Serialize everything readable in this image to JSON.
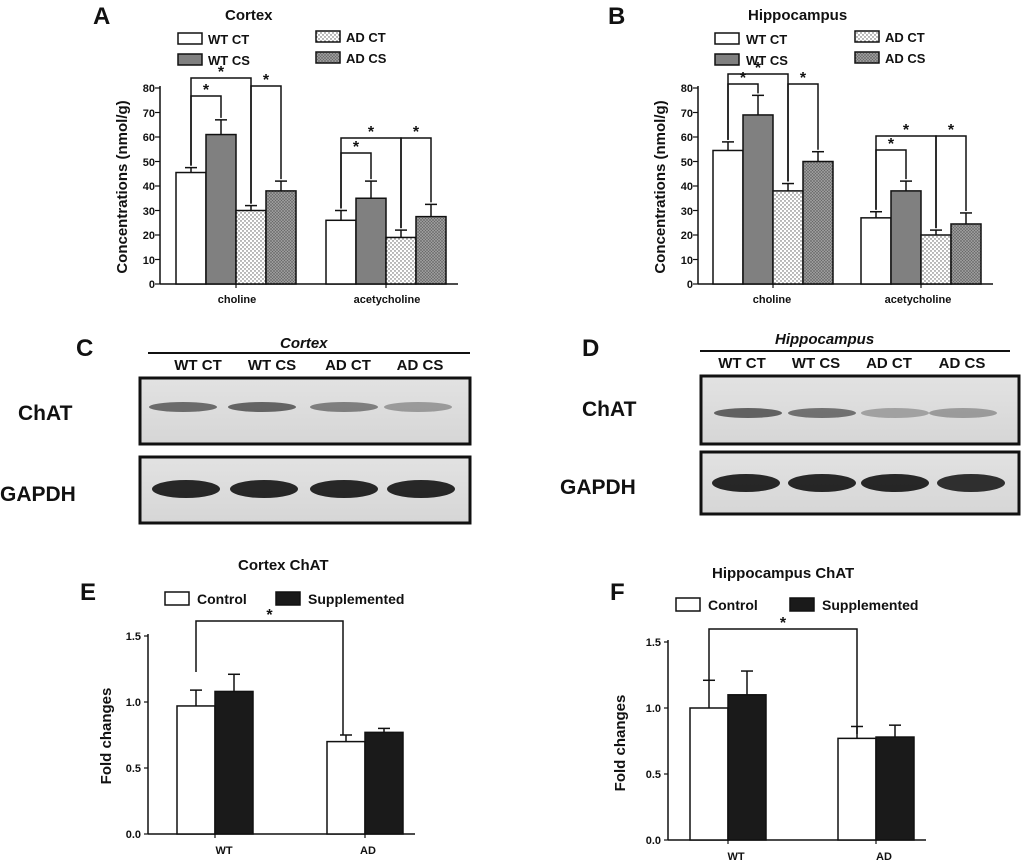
{
  "panels": {
    "a": {
      "letter": "A",
      "title": "Cortex",
      "legend": [
        "WT CT",
        "WT CS",
        "AD CT",
        "AD CS"
      ],
      "ylabel": "Concentrations (nmol/g)",
      "yticks": [
        "0",
        "10",
        "20",
        "30",
        "40",
        "50",
        "60",
        "70",
        "80"
      ],
      "categories": [
        "choline",
        "acetycholine"
      ],
      "star": "*"
    },
    "b": {
      "letter": "B",
      "title": "Hippocampus",
      "legend": [
        "WT CT",
        "WT CS",
        "AD CT",
        "AD CS"
      ],
      "ylabel": "Concentrations (nmol/g)",
      "yticks": [
        "0",
        "10",
        "20",
        "30",
        "40",
        "50",
        "60",
        "70",
        "80"
      ],
      "categories": [
        "choline",
        "acetycholine"
      ],
      "star": "*"
    },
    "c": {
      "letter": "C",
      "title": "Cortex",
      "lanes": [
        "WT CT",
        "WT CS",
        "AD CT",
        "AD CS"
      ],
      "proteins": [
        "ChAT",
        "GAPDH"
      ]
    },
    "d": {
      "letter": "D",
      "title": "Hippocampus",
      "lanes": [
        "WT CT",
        "WT CS",
        "AD CT",
        "AD CS"
      ],
      "proteins": [
        "ChAT",
        "GAPDH"
      ]
    },
    "e": {
      "letter": "E",
      "title": "Cortex ChAT",
      "legend": [
        "Control",
        "Supplemented"
      ],
      "ylabel": "Fold changes",
      "yticks": [
        "0.0",
        "0.5",
        "1.0",
        "1.5"
      ],
      "categories": [
        "WT",
        "AD"
      ],
      "star": "*"
    },
    "f": {
      "letter": "F",
      "title": "Hippocampus ChAT",
      "legend": [
        "Control",
        "Supplemented"
      ],
      "ylabel": "Fold changes",
      "yticks": [
        "0.0",
        "0.5",
        "1.0",
        "1.5"
      ],
      "categories": [
        "WT",
        "AD"
      ],
      "star": "*"
    }
  },
  "chart_data": [
    {
      "panel": "A",
      "type": "bar",
      "title": "Cortex",
      "categories": [
        "choline",
        "acetycholine"
      ],
      "ylabel": "Concentrations (nmol/g)",
      "ylim": [
        0,
        80
      ],
      "series": [
        {
          "name": "WT CT",
          "values": [
            45.5,
            26
          ],
          "errors": [
            2,
            4
          ],
          "fill": "white"
        },
        {
          "name": "WT CS",
          "values": [
            61,
            35
          ],
          "errors": [
            6,
            7
          ],
          "fill": "gray"
        },
        {
          "name": "AD CT",
          "values": [
            30,
            19
          ],
          "errors": [
            2,
            3
          ],
          "fill": "dotted"
        },
        {
          "name": "AD CS",
          "values": [
            38,
            27.5
          ],
          "errors": [
            4,
            5
          ],
          "fill": "dark-dotted"
        }
      ],
      "significance": "*"
    },
    {
      "panel": "B",
      "type": "bar",
      "title": "Hippocampus",
      "categories": [
        "choline",
        "acetycholine"
      ],
      "ylabel": "Concentrations (nmol/g)",
      "ylim": [
        0,
        80
      ],
      "series": [
        {
          "name": "WT CT",
          "values": [
            54.5,
            27
          ],
          "errors": [
            3.5,
            2.5
          ],
          "fill": "white"
        },
        {
          "name": "WT CS",
          "values": [
            69,
            38
          ],
          "errors": [
            8,
            4
          ],
          "fill": "gray"
        },
        {
          "name": "AD CT",
          "values": [
            38,
            20
          ],
          "errors": [
            3,
            2
          ],
          "fill": "dotted"
        },
        {
          "name": "AD CS",
          "values": [
            50,
            24.5
          ],
          "errors": [
            4,
            4.5
          ],
          "fill": "dark-dotted"
        }
      ],
      "significance": "*"
    },
    {
      "panel": "E",
      "type": "bar",
      "title": "Cortex ChAT",
      "categories": [
        "WT",
        "AD"
      ],
      "ylabel": "Fold changes",
      "ylim": [
        0,
        1.5
      ],
      "series": [
        {
          "name": "Control",
          "values": [
            0.97,
            0.7
          ],
          "errors": [
            0.12,
            0.05
          ],
          "fill": "white"
        },
        {
          "name": "Supplemented",
          "values": [
            1.08,
            0.77
          ],
          "errors": [
            0.13,
            0.03
          ],
          "fill": "black"
        }
      ],
      "significance": "*"
    },
    {
      "panel": "F",
      "type": "bar",
      "title": "Hippocampus ChAT",
      "categories": [
        "WT",
        "AD"
      ],
      "ylabel": "Fold changes",
      "ylim": [
        0,
        1.5
      ],
      "series": [
        {
          "name": "Control",
          "values": [
            1.0,
            0.77
          ],
          "errors": [
            0.21,
            0.09
          ],
          "fill": "white"
        },
        {
          "name": "Supplemented",
          "values": [
            1.1,
            0.78
          ],
          "errors": [
            0.18,
            0.09
          ],
          "fill": "black"
        }
      ],
      "significance": "*"
    }
  ],
  "blots": {
    "c_chat": [
      0.85,
      0.9,
      0.7,
      0.5
    ],
    "c_gapdh": [
      1.0,
      1.0,
      1.0,
      1.0
    ],
    "d_chat": [
      0.85,
      0.75,
      0.4,
      0.45
    ],
    "d_gapdh": [
      1.0,
      1.0,
      1.0,
      0.95
    ]
  }
}
